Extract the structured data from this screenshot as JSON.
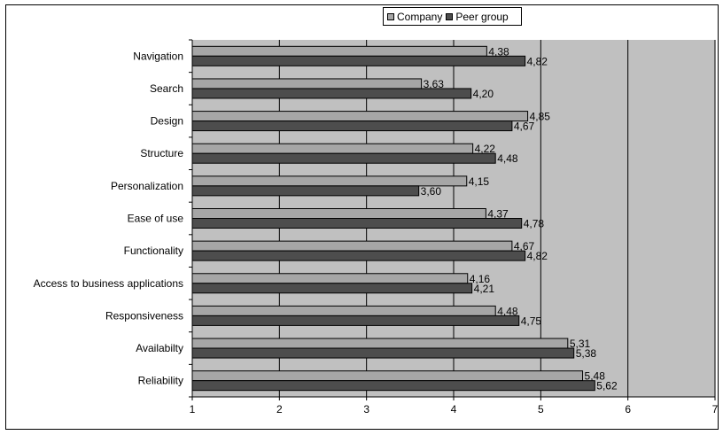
{
  "chart_data": {
    "type": "bar",
    "orientation": "horizontal",
    "categories": [
      "Navigation",
      "Search",
      "Design",
      "Structure",
      "Personalization",
      "Ease of use",
      "Functionality",
      "Access to business applications",
      "Responsiveness",
      "Availabilty",
      "Reliability"
    ],
    "series": [
      {
        "name": "Company",
        "color": "#a6a6a6",
        "values": [
          4.38,
          3.63,
          4.85,
          4.22,
          4.15,
          4.37,
          4.67,
          4.16,
          4.48,
          5.31,
          5.48
        ],
        "labels": [
          "4,38",
          "3,63",
          "4,85",
          "4,22",
          "4,15",
          "4,37",
          "4,67",
          "4,16",
          "4,48",
          "5,31",
          "5,48"
        ]
      },
      {
        "name": "Peer group",
        "color": "#4d4d4d",
        "values": [
          4.82,
          4.2,
          4.67,
          4.48,
          3.6,
          4.78,
          4.82,
          4.21,
          4.75,
          5.38,
          5.62
        ],
        "labels": [
          "4,82",
          "4,20",
          "4,67",
          "4,48",
          "3,60",
          "4,78",
          "4,82",
          "4,21",
          "4,75",
          "5,38",
          "5,62"
        ]
      }
    ],
    "xlim": [
      1,
      7
    ],
    "xticks": [
      "1",
      "2",
      "3",
      "4",
      "5",
      "6",
      "7"
    ],
    "grid": true,
    "plot_background": "#c0c0c0",
    "legend_position": "top"
  }
}
